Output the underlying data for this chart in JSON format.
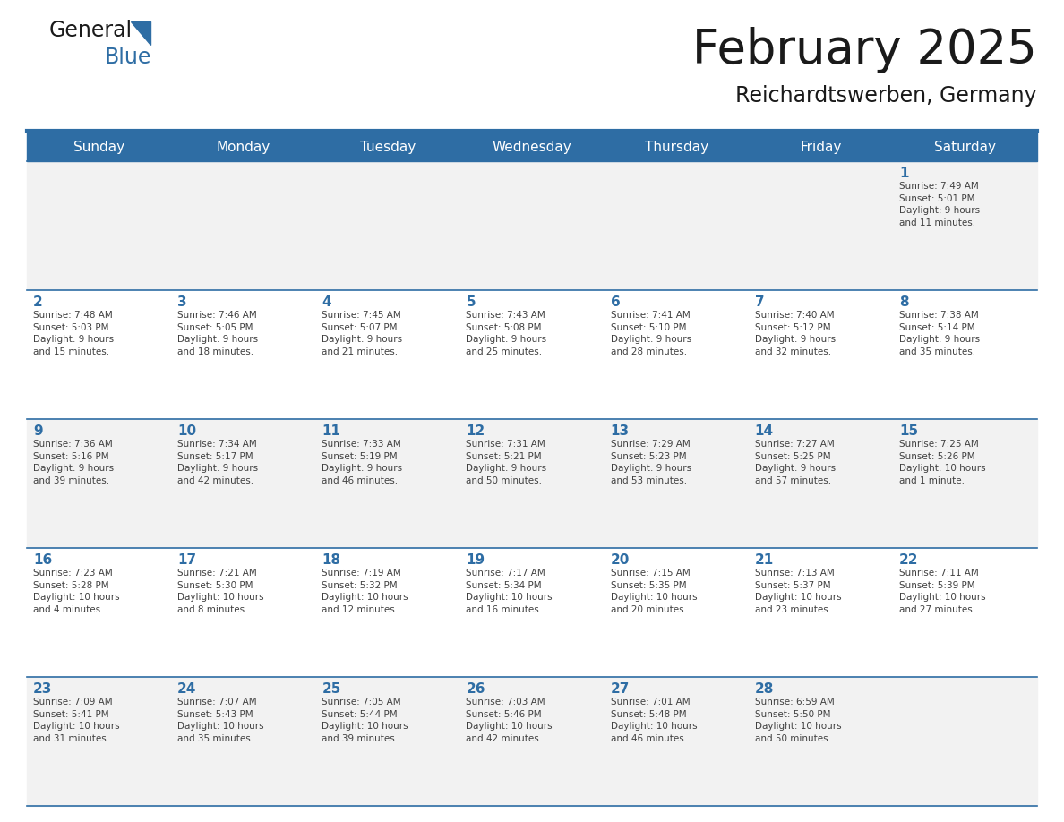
{
  "title": "February 2025",
  "subtitle": "Reichardtswerben, Germany",
  "header_bg": "#2E6DA4",
  "header_text": "#FFFFFF",
  "cell_bg_light": "#F2F2F2",
  "cell_bg_white": "#FFFFFF",
  "day_headers": [
    "Sunday",
    "Monday",
    "Tuesday",
    "Wednesday",
    "Thursday",
    "Friday",
    "Saturday"
  ],
  "weeks": [
    [
      {
        "day": "",
        "info": ""
      },
      {
        "day": "",
        "info": ""
      },
      {
        "day": "",
        "info": ""
      },
      {
        "day": "",
        "info": ""
      },
      {
        "day": "",
        "info": ""
      },
      {
        "day": "",
        "info": ""
      },
      {
        "day": "1",
        "info": "Sunrise: 7:49 AM\nSunset: 5:01 PM\nDaylight: 9 hours\nand 11 minutes."
      }
    ],
    [
      {
        "day": "2",
        "info": "Sunrise: 7:48 AM\nSunset: 5:03 PM\nDaylight: 9 hours\nand 15 minutes."
      },
      {
        "day": "3",
        "info": "Sunrise: 7:46 AM\nSunset: 5:05 PM\nDaylight: 9 hours\nand 18 minutes."
      },
      {
        "day": "4",
        "info": "Sunrise: 7:45 AM\nSunset: 5:07 PM\nDaylight: 9 hours\nand 21 minutes."
      },
      {
        "day": "5",
        "info": "Sunrise: 7:43 AM\nSunset: 5:08 PM\nDaylight: 9 hours\nand 25 minutes."
      },
      {
        "day": "6",
        "info": "Sunrise: 7:41 AM\nSunset: 5:10 PM\nDaylight: 9 hours\nand 28 minutes."
      },
      {
        "day": "7",
        "info": "Sunrise: 7:40 AM\nSunset: 5:12 PM\nDaylight: 9 hours\nand 32 minutes."
      },
      {
        "day": "8",
        "info": "Sunrise: 7:38 AM\nSunset: 5:14 PM\nDaylight: 9 hours\nand 35 minutes."
      }
    ],
    [
      {
        "day": "9",
        "info": "Sunrise: 7:36 AM\nSunset: 5:16 PM\nDaylight: 9 hours\nand 39 minutes."
      },
      {
        "day": "10",
        "info": "Sunrise: 7:34 AM\nSunset: 5:17 PM\nDaylight: 9 hours\nand 42 minutes."
      },
      {
        "day": "11",
        "info": "Sunrise: 7:33 AM\nSunset: 5:19 PM\nDaylight: 9 hours\nand 46 minutes."
      },
      {
        "day": "12",
        "info": "Sunrise: 7:31 AM\nSunset: 5:21 PM\nDaylight: 9 hours\nand 50 minutes."
      },
      {
        "day": "13",
        "info": "Sunrise: 7:29 AM\nSunset: 5:23 PM\nDaylight: 9 hours\nand 53 minutes."
      },
      {
        "day": "14",
        "info": "Sunrise: 7:27 AM\nSunset: 5:25 PM\nDaylight: 9 hours\nand 57 minutes."
      },
      {
        "day": "15",
        "info": "Sunrise: 7:25 AM\nSunset: 5:26 PM\nDaylight: 10 hours\nand 1 minute."
      }
    ],
    [
      {
        "day": "16",
        "info": "Sunrise: 7:23 AM\nSunset: 5:28 PM\nDaylight: 10 hours\nand 4 minutes."
      },
      {
        "day": "17",
        "info": "Sunrise: 7:21 AM\nSunset: 5:30 PM\nDaylight: 10 hours\nand 8 minutes."
      },
      {
        "day": "18",
        "info": "Sunrise: 7:19 AM\nSunset: 5:32 PM\nDaylight: 10 hours\nand 12 minutes."
      },
      {
        "day": "19",
        "info": "Sunrise: 7:17 AM\nSunset: 5:34 PM\nDaylight: 10 hours\nand 16 minutes."
      },
      {
        "day": "20",
        "info": "Sunrise: 7:15 AM\nSunset: 5:35 PM\nDaylight: 10 hours\nand 20 minutes."
      },
      {
        "day": "21",
        "info": "Sunrise: 7:13 AM\nSunset: 5:37 PM\nDaylight: 10 hours\nand 23 minutes."
      },
      {
        "day": "22",
        "info": "Sunrise: 7:11 AM\nSunset: 5:39 PM\nDaylight: 10 hours\nand 27 minutes."
      }
    ],
    [
      {
        "day": "23",
        "info": "Sunrise: 7:09 AM\nSunset: 5:41 PM\nDaylight: 10 hours\nand 31 minutes."
      },
      {
        "day": "24",
        "info": "Sunrise: 7:07 AM\nSunset: 5:43 PM\nDaylight: 10 hours\nand 35 minutes."
      },
      {
        "day": "25",
        "info": "Sunrise: 7:05 AM\nSunset: 5:44 PM\nDaylight: 10 hours\nand 39 minutes."
      },
      {
        "day": "26",
        "info": "Sunrise: 7:03 AM\nSunset: 5:46 PM\nDaylight: 10 hours\nand 42 minutes."
      },
      {
        "day": "27",
        "info": "Sunrise: 7:01 AM\nSunset: 5:48 PM\nDaylight: 10 hours\nand 46 minutes."
      },
      {
        "day": "28",
        "info": "Sunrise: 6:59 AM\nSunset: 5:50 PM\nDaylight: 10 hours\nand 50 minutes."
      },
      {
        "day": "",
        "info": ""
      }
    ]
  ],
  "num_weeks": 5,
  "num_cols": 7,
  "day_number_color": "#2E6DA4",
  "info_text_color": "#404040",
  "grid_line_color": "#2E6DA4",
  "logo_text1_color": "#1a1a1a",
  "logo_text2_color": "#2E6DA4",
  "logo_triangle_color": "#2E6DA4"
}
